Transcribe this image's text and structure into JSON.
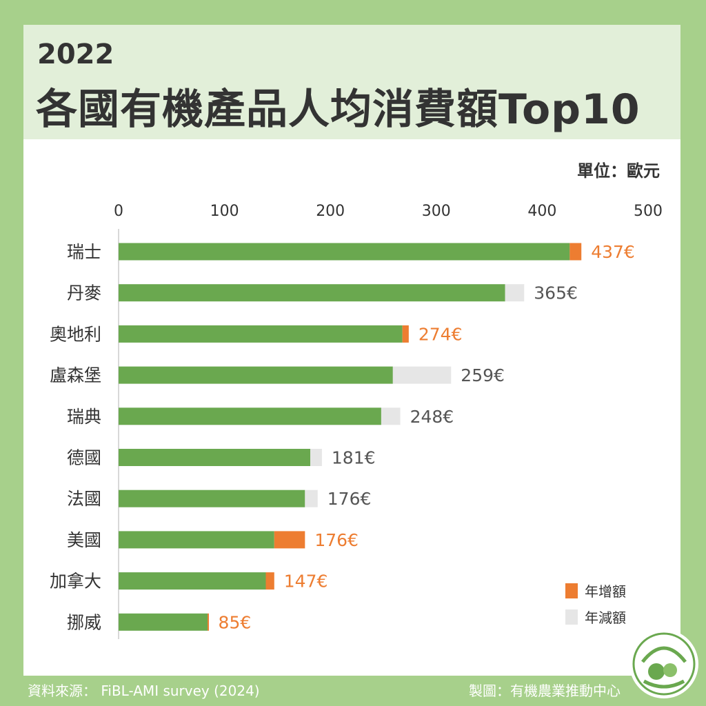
{
  "header": {
    "year": "2022",
    "title": "各國有機產品人均消費額Top10"
  },
  "unit_label": "單位：歐元",
  "chart_data": {
    "type": "bar",
    "orientation": "horizontal",
    "stacked": true,
    "xlim": [
      0,
      500
    ],
    "ticks": [
      "0",
      "100",
      "200",
      "300",
      "400",
      "500"
    ],
    "tick_values": [
      0,
      100,
      200,
      300,
      400,
      500
    ],
    "categories": [
      "瑞士",
      "丹麥",
      "奧地利",
      "盧森堡",
      "瑞典",
      "德國",
      "法國",
      "美國",
      "加拿大",
      "挪威"
    ],
    "values": [
      437,
      365,
      274,
      259,
      248,
      181,
      176,
      176,
      147,
      85
    ],
    "value_labels": [
      "437€",
      "365€",
      "274€",
      "259€",
      "248€",
      "181€",
      "176€",
      "176€",
      "147€",
      "85€"
    ],
    "change_types": [
      "increase",
      "decrease",
      "increase",
      "decrease",
      "decrease",
      "decrease",
      "decrease",
      "increase",
      "increase",
      "increase"
    ],
    "base_values": [
      426,
      365,
      268,
      259,
      248,
      181,
      176,
      147,
      139,
      84
    ],
    "segment_values": [
      11,
      18,
      6,
      55,
      18,
      11,
      12,
      29,
      8,
      1
    ],
    "series": [
      {
        "name": "base",
        "color": "#6aa84f"
      },
      {
        "name": "年增額",
        "color": "#ed7d31"
      },
      {
        "name": "年減額",
        "color": "#e6e6e6"
      }
    ],
    "legend": [
      {
        "label": "年增額",
        "color": "#ed7d31"
      },
      {
        "label": "年減額",
        "color": "#e6e6e6"
      }
    ],
    "legend_position": "bottom-right"
  },
  "colors": {
    "base": "#6aa84f",
    "increase": "#ed7d31",
    "decrease": "#e6e6e6",
    "increase_text": "#ed7d31",
    "decrease_text": "#555555",
    "background": "#a7d08b",
    "header_bg": "#e2efd9"
  },
  "footer": {
    "source": "資料來源： FiBL-AMI survey (2024)",
    "credit": "製圖：有機農業推動中心"
  },
  "logo": {
    "icon": "organic-leaf-logo-icon"
  }
}
